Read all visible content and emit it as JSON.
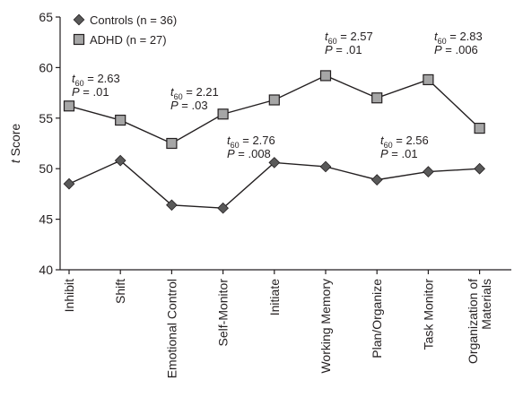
{
  "chart_data": {
    "type": "line",
    "ylabel": "t Score",
    "ylim": [
      40,
      65
    ],
    "yticks": [
      40,
      45,
      50,
      55,
      60,
      65
    ],
    "categories": [
      "Inhibit",
      "Shift",
      "Emotional Control",
      "Self-Monitor",
      "Initiate",
      "Working Memory",
      "Plan/Organize",
      "Task Monitor",
      "Organization of Materials"
    ],
    "series": [
      {
        "name": "Controls (n = 36)",
        "marker": "diamond",
        "color": "#595959",
        "values": [
          48.5,
          50.8,
          46.4,
          46.1,
          50.6,
          50.2,
          48.9,
          49.7,
          50.0
        ]
      },
      {
        "name": "ADHD (n = 27)",
        "marker": "square",
        "color": "#a6a6a6",
        "values": [
          56.2,
          54.8,
          52.5,
          55.4,
          56.8,
          59.2,
          57.0,
          58.8,
          54.0
        ]
      }
    ],
    "annotations": [
      {
        "category": "Inhibit",
        "t_sub": "60",
        "t_value": "2.63",
        "p_value": ".01"
      },
      {
        "category": "Emotional Control",
        "t_sub": "60",
        "t_value": "2.21",
        "p_value": ".03"
      },
      {
        "category": "Self-Monitor",
        "t_sub": "60",
        "t_value": "2.76",
        "p_value": ".008"
      },
      {
        "category": "Working Memory",
        "t_sub": "60",
        "t_value": "2.57",
        "p_value": ".01"
      },
      {
        "category": "Plan/Organize",
        "t_sub": "60",
        "t_value": "2.56",
        "p_value": ".01"
      },
      {
        "category": "Task Monitor",
        "t_sub": "60",
        "t_value": "2.83",
        "p_value": ".006"
      }
    ],
    "legend": "top-left",
    "grid": false
  }
}
